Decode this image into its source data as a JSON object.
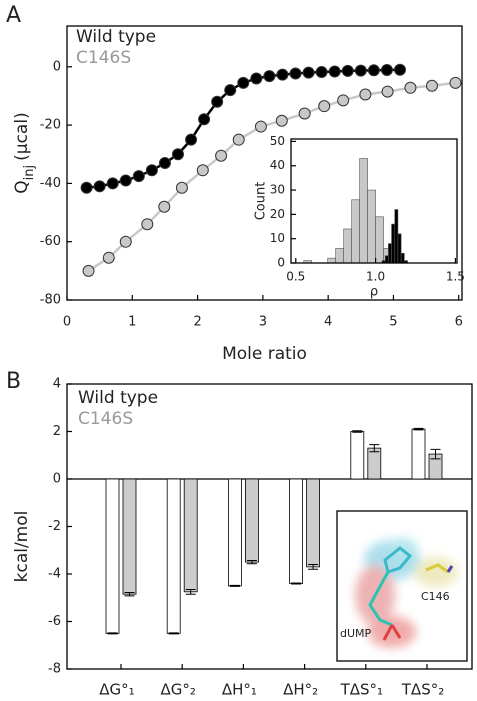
{
  "chart_data": [
    {
      "panel": "A",
      "type": "line",
      "xlabel": "Mole ratio",
      "ylabel": {
        "symbol": "Q",
        "subscript": "inj",
        "unit": "(μcal)"
      },
      "xlim": [
        0,
        6.05
      ],
      "ylim": [
        -80,
        14
      ],
      "xticks": [
        0,
        1,
        2,
        3,
        4,
        5,
        6
      ],
      "yticks": [
        -80,
        -60,
        -40,
        -20,
        0
      ],
      "series": [
        {
          "name": "Wild type",
          "color": "#000000",
          "x": [
            0.3,
            0.5,
            0.7,
            0.9,
            1.1,
            1.3,
            1.5,
            1.7,
            1.9,
            2.1,
            2.3,
            2.5,
            2.7,
            2.9,
            3.1,
            3.3,
            3.5,
            3.7,
            3.9,
            4.1,
            4.3,
            4.5,
            4.7,
            4.9,
            5.1
          ],
          "values": [
            -41.5,
            -41,
            -40,
            -39,
            -37.5,
            -35.5,
            -33,
            -30,
            -25,
            -18,
            -12,
            -8,
            -5.5,
            -4,
            -3.2,
            -2.7,
            -2.3,
            -2,
            -1.8,
            -1.6,
            -1.4,
            -1.3,
            -1.2,
            -1.1,
            -1
          ]
        },
        {
          "name": "C146S",
          "color": "#c8c8c8",
          "x": [
            0.33,
            0.64,
            0.9,
            1.23,
            1.49,
            1.76,
            2.08,
            2.36,
            2.63,
            2.97,
            3.29,
            3.64,
            3.94,
            4.23,
            4.57,
            4.91,
            5.26,
            5.59,
            5.95
          ],
          "values": [
            -70,
            -65.5,
            -60,
            -54,
            -48,
            -41.5,
            -35.5,
            -30.5,
            -25,
            -20.5,
            -18.5,
            -16,
            -13.5,
            -11.5,
            -9.5,
            -8.5,
            -7.2,
            -6.5,
            -5.5
          ]
        }
      ]
    },
    {
      "type": "histogram",
      "xlabel": "ρ",
      "ylabel": "Count",
      "xlim": [
        0.47,
        1.51
      ],
      "ylim": [
        0,
        51
      ],
      "xticks": [
        0.5,
        {
          "value": 1.0,
          "label": "1.0"
        },
        1.5
      ],
      "yticks": [
        0,
        10,
        20,
        30,
        40,
        50
      ],
      "series": [
        {
          "color": "#c8c8c8",
          "bins": [
            0.55,
            0.6,
            0.65,
            0.7,
            0.75,
            0.8,
            0.85,
            0.9,
            0.95,
            1.0,
            1.05,
            1.1,
            1.15
          ],
          "values": [
            1,
            0,
            0,
            2,
            6,
            14,
            26,
            43,
            30,
            19,
            6,
            1
          ]
        },
        {
          "color": "#000000",
          "bins": [
            1.04,
            1.06,
            1.08,
            1.1,
            1.12,
            1.14,
            1.16,
            1.18,
            1.2
          ],
          "values": [
            1,
            3,
            8,
            16,
            22,
            12,
            4,
            1
          ]
        }
      ]
    },
    {
      "panel": "B",
      "type": "bar",
      "ylabel": "kcal/mol",
      "categories": [
        "ΔG°₁",
        "ΔG°₂",
        "ΔH°₁",
        "ΔH°₂",
        "TΔS°₁",
        "TΔS°₂"
      ],
      "ylim": [
        -8,
        4
      ],
      "yticks": [
        -8,
        -6,
        -4,
        -2,
        0,
        2,
        4
      ],
      "series": [
        {
          "name": "Wild type",
          "color": "#ffffff",
          "values": [
            -6.5,
            -6.5,
            -4.5,
            -4.4,
            2.0,
            2.1
          ],
          "errors": [
            0.02,
            0.02,
            0.02,
            0.02,
            0.03,
            0.03
          ]
        },
        {
          "name": "C146S",
          "color": "#cccccc",
          "values": [
            -4.85,
            -4.75,
            -3.5,
            -3.7,
            1.3,
            1.05
          ],
          "errors": [
            0.07,
            0.1,
            0.07,
            0.1,
            0.15,
            0.2
          ]
        }
      ],
      "annotations": {
        "residue": "C146",
        "ligand": "dUMP"
      }
    }
  ]
}
